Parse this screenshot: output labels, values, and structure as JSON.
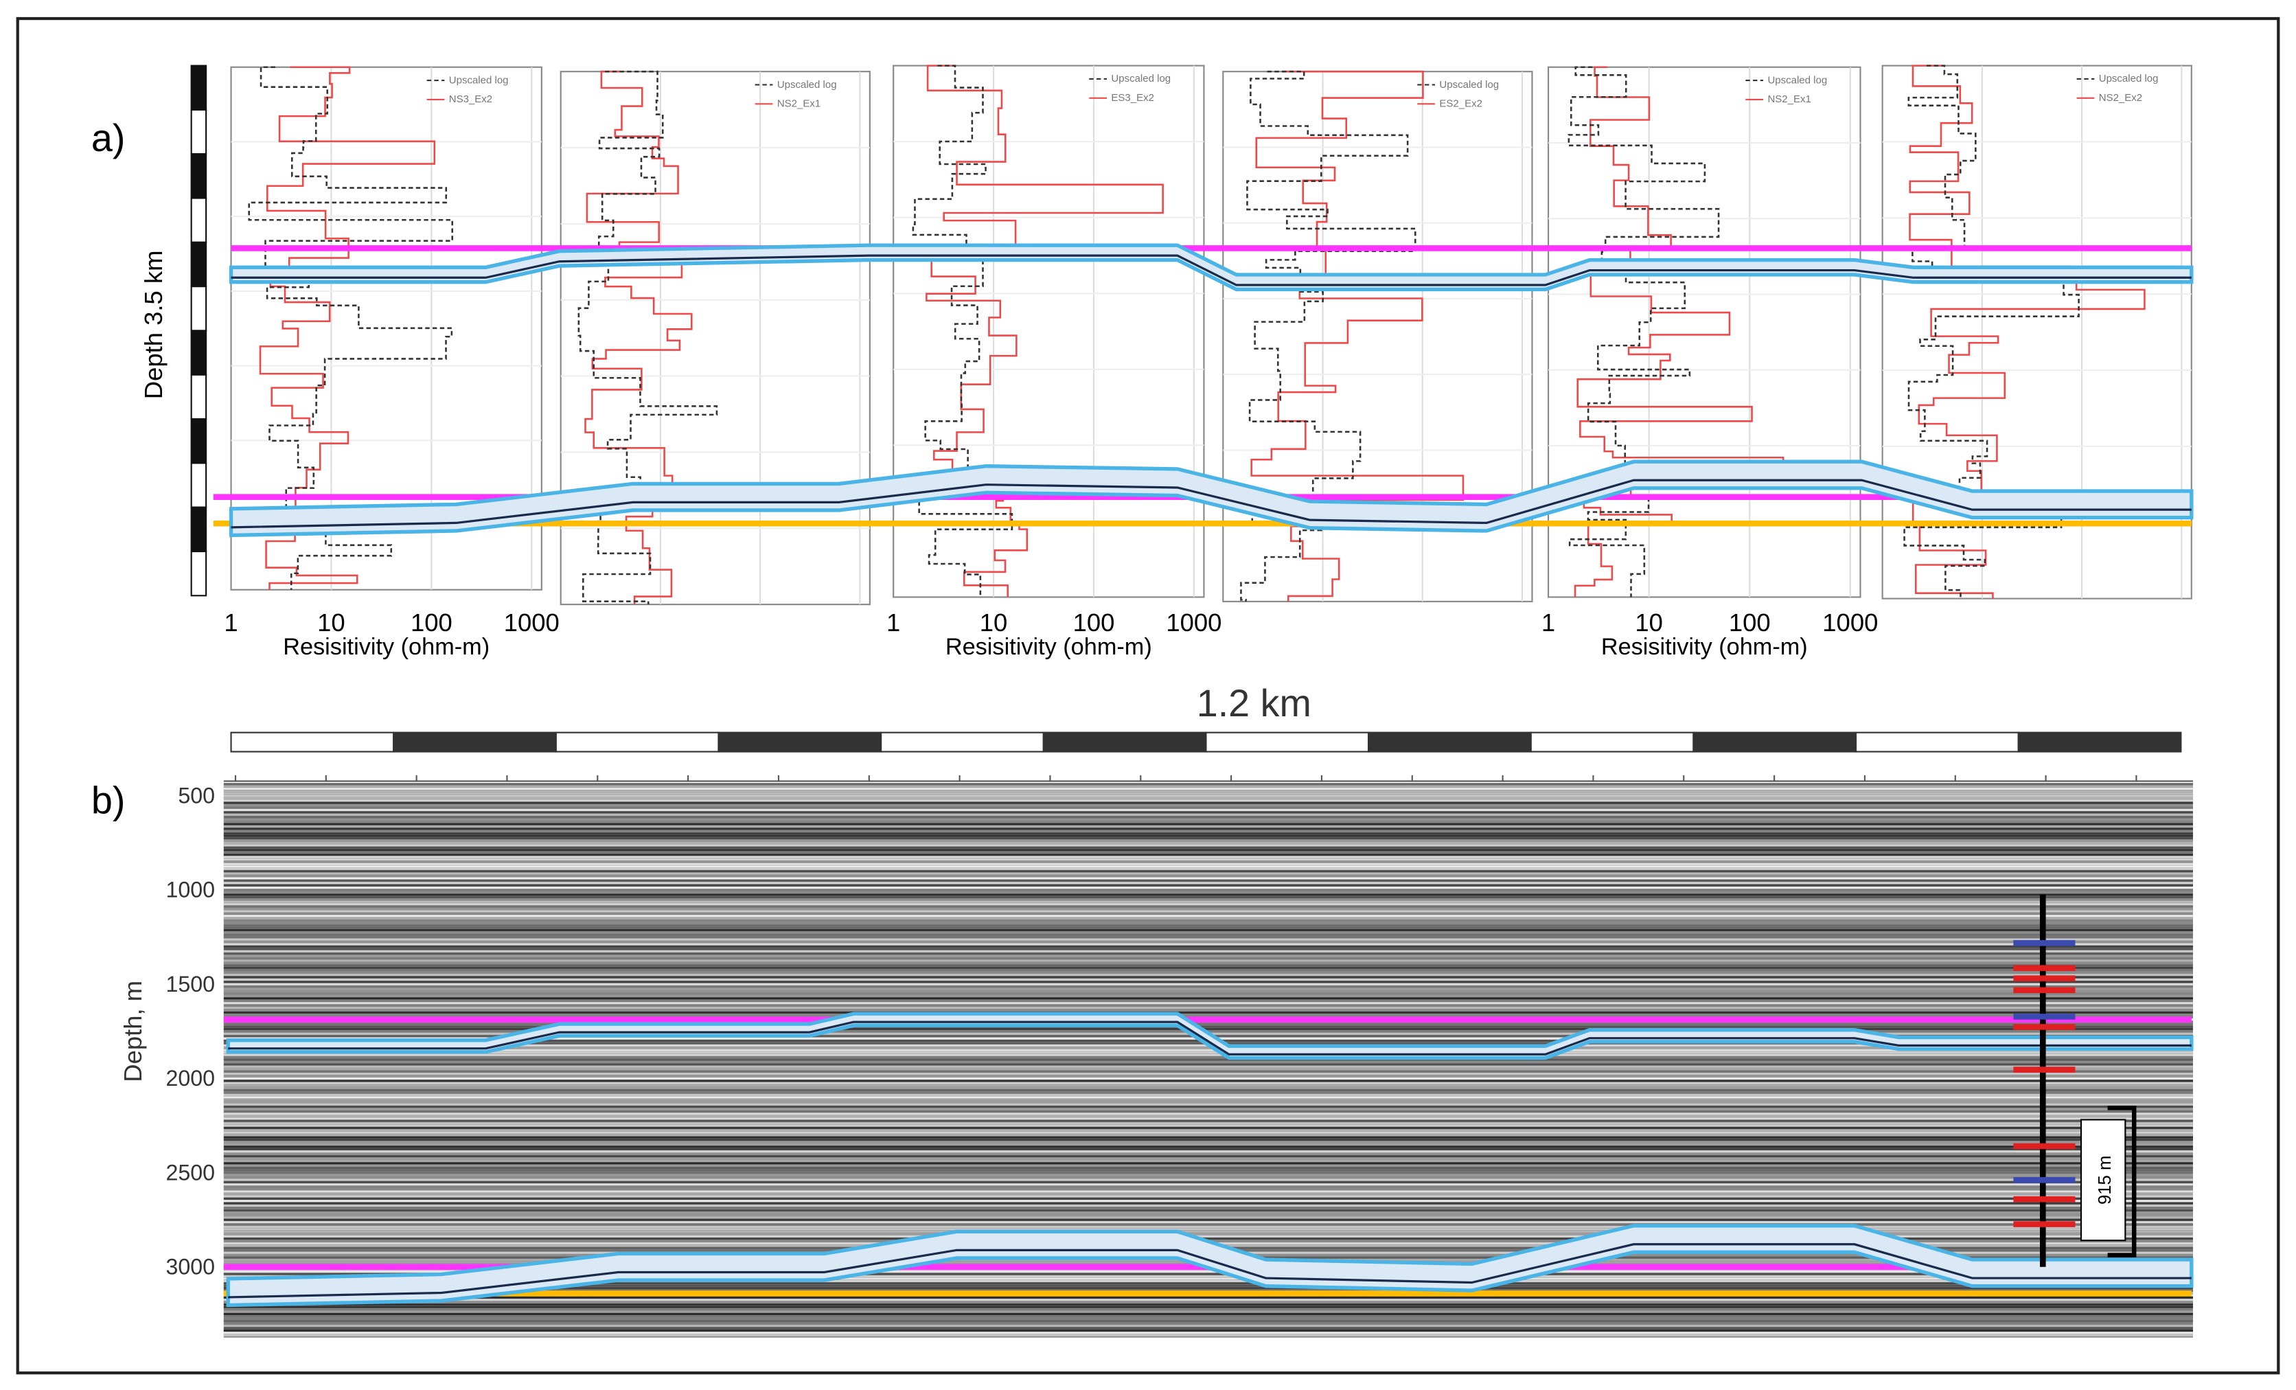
{
  "panel_a": {
    "label": "a)",
    "depth_label": "Depth 3.5 km",
    "x_ticks": [
      "1",
      "10",
      "100",
      "1000"
    ],
    "x_axis_label": "Resisitivity (ohm-m)",
    "logs": [
      {
        "legend_dashed": "Upscaled log",
        "legend_solid": "NS3_Ex2"
      },
      {
        "legend_dashed": "Upscaled log",
        "legend_solid": "NS2_Ex1"
      },
      {
        "legend_dashed": "Upscaled log",
        "legend_solid": "ES3_Ex2"
      },
      {
        "legend_dashed": "Upscaled log",
        "legend_solid": "ES2_Ex2"
      },
      {
        "legend_dashed": "Upscaled log",
        "legend_solid": "NS2_Ex1"
      },
      {
        "legend_dashed": "Upscaled log",
        "legend_solid": "NS2_Ex2"
      }
    ]
  },
  "scale_label": "1.2 km",
  "panel_b": {
    "label": "b)",
    "y_axis_label": "Depth, m",
    "y_ticks": [
      "500",
      "1000",
      "1500",
      "2000",
      "2500",
      "3000"
    ],
    "annotation": "915 m"
  }
}
